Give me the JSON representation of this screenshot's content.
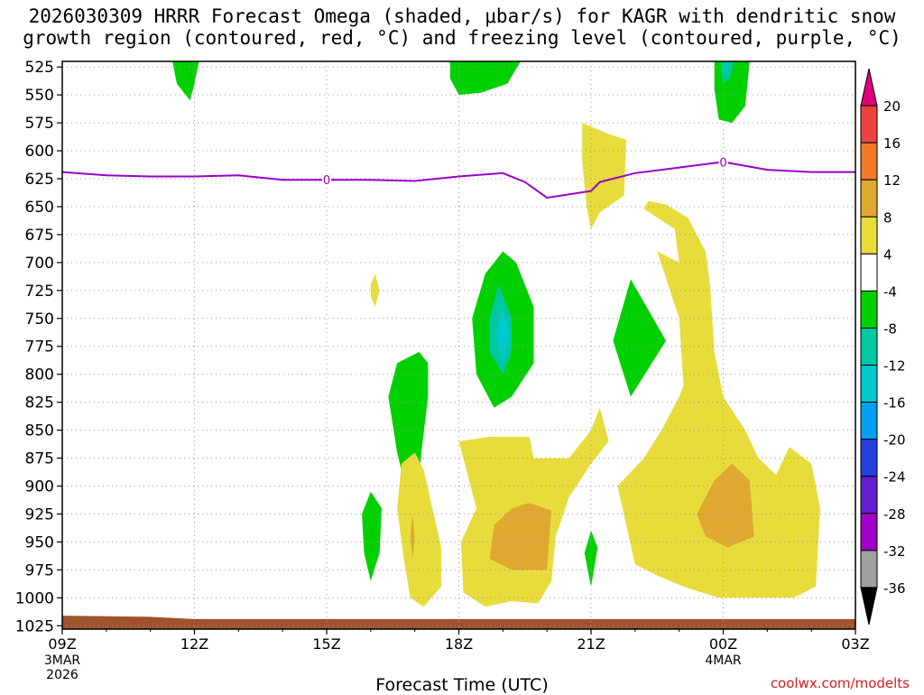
{
  "title_line1": "2026030309 HRRR Forecast Omega (shaded, μbar/s) for KAGR with dendritic snow",
  "title_line2": "growth region (contoured, red, °C) and freezing level (contoured, purple, °C)",
  "xlabel": "Forecast Time (UTC)",
  "credit": "coolwx.com/modelts",
  "colors": {
    "green": "#00d000",
    "teal": "#00c8a0",
    "cyan": "#00c8d0",
    "yellow": "#e8dc3c",
    "orange": "#e0a830",
    "dark_orange": "#e08820",
    "brown": "#a0522d",
    "purple": "#9c00c8",
    "grid": "#9a9a9a"
  },
  "chart_data": {
    "type": "heatmap",
    "x_hours": [
      0,
      3,
      6,
      9,
      12,
      15,
      18
    ],
    "x_tick_labels": [
      "09Z",
      "12Z",
      "15Z",
      "18Z",
      "21Z",
      "00Z",
      "03Z"
    ],
    "x_sub_labels": [
      {
        "hour": 0,
        "lines": [
          "3MAR",
          "2026"
        ]
      },
      {
        "hour": 15,
        "lines": [
          "4MAR"
        ]
      }
    ],
    "y_levels_mb": [
      525,
      550,
      575,
      600,
      625,
      650,
      675,
      700,
      725,
      750,
      775,
      800,
      825,
      850,
      875,
      900,
      925,
      950,
      975,
      1000,
      1025
    ],
    "ylim": [
      520,
      1028
    ],
    "xlim": [
      0,
      18
    ],
    "colorbar": {
      "labels": [
        "20",
        "16",
        "12",
        "8",
        "4",
        "-4",
        "-8",
        "-12",
        "-16",
        "-20",
        "-24",
        "-28",
        "-32",
        "-36"
      ],
      "bins": [
        {
          "color": "#e0007a",
          "kind": "triangle-top"
        },
        {
          "color": "#f04040"
        },
        {
          "color": "#f07a2a"
        },
        {
          "color": "#e0a830"
        },
        {
          "color": "#e8dc3c"
        },
        {
          "color": "#ffffff"
        },
        {
          "color": "#00d000"
        },
        {
          "color": "#00c8a0"
        },
        {
          "color": "#00c8d0"
        },
        {
          "color": "#00a0f0"
        },
        {
          "color": "#2040e0"
        },
        {
          "color": "#6020d0"
        },
        {
          "color": "#a000c8"
        },
        {
          "color": "#a0a0a0"
        },
        {
          "color": "#000000",
          "kind": "triangle-bottom"
        }
      ]
    },
    "freezing_level": {
      "label": "0",
      "points": [
        {
          "h": 0,
          "p": 619
        },
        {
          "h": 1,
          "p": 622
        },
        {
          "h": 2,
          "p": 623
        },
        {
          "h": 3,
          "p": 623
        },
        {
          "h": 4,
          "p": 622
        },
        {
          "h": 5,
          "p": 626
        },
        {
          "h": 6,
          "p": 626
        },
        {
          "h": 7,
          "p": 626
        },
        {
          "h": 8,
          "p": 627
        },
        {
          "h": 9,
          "p": 623
        },
        {
          "h": 10,
          "p": 620
        },
        {
          "h": 10.5,
          "p": 628
        },
        {
          "h": 11,
          "p": 642
        },
        {
          "h": 12,
          "p": 636
        },
        {
          "h": 12.2,
          "p": 628
        },
        {
          "h": 13,
          "p": 620
        },
        {
          "h": 14,
          "p": 615
        },
        {
          "h": 15,
          "p": 610
        },
        {
          "h": 16,
          "p": 617
        },
        {
          "h": 17,
          "p": 619
        },
        {
          "h": 18,
          "p": 619
        }
      ],
      "label_hours": [
        6,
        15
      ]
    },
    "omega_regions": [
      {
        "level": "-4 to -8",
        "color": "green",
        "pts": [
          [
            2.5,
            520
          ],
          [
            3.1,
            520
          ],
          [
            3.0,
            540
          ],
          [
            2.9,
            555
          ],
          [
            2.6,
            540
          ]
        ]
      },
      {
        "level": "-4 to -8",
        "color": "green",
        "pts": [
          [
            8.8,
            520
          ],
          [
            10.4,
            520
          ],
          [
            10.1,
            540
          ],
          [
            9.5,
            548
          ],
          [
            9.0,
            550
          ],
          [
            8.8,
            535
          ]
        ]
      },
      {
        "level": "-4 to -8",
        "color": "green",
        "pts": [
          [
            14.8,
            520
          ],
          [
            15.6,
            520
          ],
          [
            15.5,
            560
          ],
          [
            15.2,
            575
          ],
          [
            14.9,
            572
          ],
          [
            14.8,
            545
          ]
        ]
      },
      {
        "level": "-8 to -12",
        "color": "teal",
        "pts": [
          [
            14.95,
            520
          ],
          [
            15.25,
            520
          ],
          [
            15.15,
            535
          ],
          [
            15.0,
            540
          ],
          [
            14.95,
            528
          ]
        ]
      },
      {
        "level": "4 to 8",
        "color": "yellow",
        "pts": [
          [
            11.8,
            575
          ],
          [
            12.4,
            585
          ],
          [
            12.8,
            590
          ],
          [
            12.75,
            640
          ],
          [
            12.2,
            655
          ],
          [
            12.0,
            670
          ],
          [
            11.9,
            650
          ],
          [
            11.8,
            610
          ]
        ]
      },
      {
        "level": "4 to 8",
        "color": "yellow",
        "pts": [
          [
            7.0,
            720
          ],
          [
            7.1,
            710
          ],
          [
            7.2,
            725
          ],
          [
            7.1,
            740
          ],
          [
            7.0,
            730
          ]
        ]
      },
      {
        "level": "-4 to -8",
        "color": "green",
        "pts": [
          [
            10.0,
            690
          ],
          [
            10.3,
            700
          ],
          [
            10.7,
            740
          ],
          [
            10.7,
            790
          ],
          [
            10.2,
            820
          ],
          [
            9.8,
            830
          ],
          [
            9.4,
            800
          ],
          [
            9.3,
            750
          ],
          [
            9.6,
            710
          ]
        ]
      },
      {
        "level": "-8 to -12",
        "color": "teal",
        "pts": [
          [
            9.9,
            720
          ],
          [
            10.2,
            750
          ],
          [
            10.2,
            780
          ],
          [
            10.0,
            800
          ],
          [
            9.7,
            780
          ],
          [
            9.7,
            750
          ]
        ]
      },
      {
        "level": "-12 to -16",
        "color": "cyan",
        "pts": [
          [
            10.0,
            740
          ],
          [
            10.15,
            765
          ],
          [
            10.0,
            790
          ],
          [
            9.85,
            765
          ]
        ]
      },
      {
        "level": "-4 to -8",
        "color": "green",
        "pts": [
          [
            12.9,
            715
          ],
          [
            13.7,
            770
          ],
          [
            12.9,
            820
          ],
          [
            12.5,
            770
          ]
        ]
      },
      {
        "level": "-4 to -8",
        "color": "green",
        "pts": [
          [
            8.1,
            780
          ],
          [
            8.3,
            790
          ],
          [
            8.3,
            820
          ],
          [
            8.15,
            870
          ],
          [
            8.0,
            935
          ],
          [
            7.6,
            870
          ],
          [
            7.4,
            820
          ],
          [
            7.6,
            790
          ]
        ]
      },
      {
        "level": "-4 to -8",
        "color": "green",
        "pts": [
          [
            7.0,
            905
          ],
          [
            7.25,
            920
          ],
          [
            7.2,
            960
          ],
          [
            7.0,
            985
          ],
          [
            6.85,
            960
          ],
          [
            6.8,
            925
          ]
        ]
      },
      {
        "level": "-4 to -8",
        "color": "green",
        "pts": [
          [
            12.0,
            940
          ],
          [
            12.15,
            955
          ],
          [
            12.0,
            990
          ],
          [
            11.85,
            960
          ]
        ]
      },
      {
        "level": "4 to 8",
        "color": "yellow",
        "pts": [
          [
            8.0,
            870
          ],
          [
            8.2,
            885
          ],
          [
            8.6,
            955
          ],
          [
            8.6,
            990
          ],
          [
            8.2,
            1008
          ],
          [
            7.9,
            1000
          ],
          [
            7.75,
            965
          ],
          [
            7.6,
            920
          ],
          [
            7.7,
            880
          ]
        ]
      },
      {
        "level": "4 to 8",
        "color": "yellow",
        "pts": [
          [
            9.0,
            860
          ],
          [
            9.7,
            856
          ],
          [
            10.6,
            856
          ],
          [
            10.7,
            875
          ],
          [
            11.5,
            875
          ],
          [
            12.0,
            850
          ],
          [
            12.2,
            830
          ],
          [
            12.4,
            860
          ],
          [
            12.0,
            880
          ],
          [
            11.5,
            910
          ],
          [
            11.2,
            945
          ],
          [
            11.1,
            985
          ],
          [
            10.8,
            1005
          ],
          [
            10.2,
            1003
          ],
          [
            9.6,
            1008
          ],
          [
            9.1,
            995
          ],
          [
            9.05,
            950
          ],
          [
            9.4,
            920
          ],
          [
            9.2,
            890
          ]
        ]
      },
      {
        "level": "4 to 8",
        "color": "yellow",
        "pts": [
          [
            13.2,
            652
          ],
          [
            13.9,
            670
          ],
          [
            14.0,
            700
          ],
          [
            13.5,
            690
          ],
          [
            14.0,
            750
          ],
          [
            14.1,
            810
          ],
          [
            14.0,
            820
          ],
          [
            13.6,
            850
          ],
          [
            13.2,
            875
          ],
          [
            12.6,
            900
          ],
          [
            12.8,
            935
          ],
          [
            13.0,
            970
          ],
          [
            13.5,
            980
          ],
          [
            14.1,
            990
          ],
          [
            14.9,
            1000
          ],
          [
            16.6,
            1000
          ],
          [
            17.1,
            990
          ],
          [
            17.2,
            920
          ],
          [
            17.0,
            880
          ],
          [
            16.5,
            865
          ],
          [
            16.2,
            890
          ],
          [
            15.8,
            875
          ],
          [
            15.5,
            850
          ],
          [
            15.0,
            820
          ],
          [
            14.8,
            780
          ],
          [
            14.7,
            720
          ],
          [
            14.6,
            690
          ],
          [
            14.2,
            660
          ],
          [
            13.7,
            648
          ],
          [
            13.3,
            645
          ]
        ]
      },
      {
        "level": "8 to 12",
        "color": "orange",
        "pts": [
          [
            10.6,
            915
          ],
          [
            11.1,
            922
          ],
          [
            11.0,
            975
          ],
          [
            10.2,
            975
          ],
          [
            9.7,
            965
          ],
          [
            9.8,
            935
          ],
          [
            10.2,
            920
          ]
        ]
      },
      {
        "level": "8 to 12",
        "color": "orange",
        "pts": [
          [
            15.2,
            880
          ],
          [
            15.6,
            895
          ],
          [
            15.7,
            945
          ],
          [
            15.1,
            955
          ],
          [
            14.6,
            945
          ],
          [
            14.4,
            925
          ],
          [
            14.8,
            895
          ]
        ]
      },
      {
        "level": "8 to 12",
        "color": "orange",
        "pts": [
          [
            7.95,
            925
          ],
          [
            8.0,
            945
          ],
          [
            7.95,
            965
          ],
          [
            7.9,
            945
          ]
        ]
      }
    ],
    "surface_band": {
      "label": "terrain",
      "pts": [
        [
          0,
          1016
        ],
        [
          2,
          1017
        ],
        [
          3,
          1019
        ],
        [
          18,
          1019
        ],
        [
          18,
          1028
        ],
        [
          0,
          1028
        ]
      ]
    }
  }
}
